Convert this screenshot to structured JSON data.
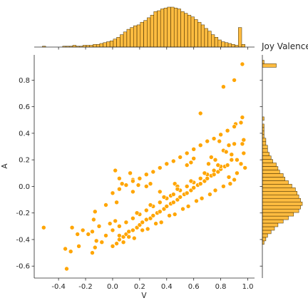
{
  "chart_data": {
    "type": "scatter",
    "title": "Joy Valence",
    "xlabel": "V",
    "ylabel": "A",
    "xlim": [
      -0.58,
      1.05
    ],
    "ylim": [
      -0.69,
      0.99
    ],
    "x_ticks": [
      "-0.4",
      "-0.2",
      "0.0",
      "0.2",
      "0.4",
      "0.6",
      "0.8",
      "1.0"
    ],
    "y_ticks": [
      "-0.6",
      "-0.4",
      "-0.2",
      "0.0",
      "0.2",
      "0.4",
      "0.6",
      "0.8"
    ],
    "color": "#FFA500",
    "edge_color": "#ffffff",
    "marginals": "histograms of V (top) and A (right)",
    "series": [
      {
        "points": [
          [
            -0.34,
            -0.62
          ],
          [
            -0.51,
            -0.31
          ],
          [
            -0.35,
            -0.47
          ],
          [
            -0.31,
            -0.49
          ],
          [
            -0.25,
            -0.45
          ],
          [
            -0.22,
            -0.33
          ],
          [
            -0.3,
            -0.31
          ],
          [
            -0.26,
            -0.36
          ],
          [
            -0.15,
            -0.5
          ],
          [
            -0.13,
            -0.46
          ],
          [
            -0.18,
            -0.36
          ],
          [
            -0.15,
            -0.34
          ],
          [
            -0.12,
            -0.41
          ],
          [
            -0.08,
            -0.42
          ],
          [
            -0.05,
            -0.37
          ],
          [
            -0.1,
            -0.3
          ],
          [
            -0.02,
            -0.28
          ],
          [
            0.02,
            -0.26
          ],
          [
            0.0,
            -0.33
          ],
          [
            0.05,
            -0.37
          ],
          [
            -0.14,
            -0.25
          ],
          [
            -0.13,
            -0.19
          ],
          [
            -0.05,
            -0.14
          ],
          [
            0.03,
            -0.12
          ],
          [
            0.02,
            0.12
          ],
          [
            0.05,
            0.06
          ],
          [
            0.07,
            0.02
          ],
          [
            0.13,
            0.1
          ],
          [
            0.15,
            0.05
          ],
          [
            0.19,
            0.01
          ],
          [
            0.15,
            -0.04
          ],
          [
            0.25,
            0.0
          ],
          [
            0.28,
            0.02
          ],
          [
            0.35,
            -0.04
          ],
          [
            0.46,
            0.02
          ],
          [
            0.48,
            0.0
          ],
          [
            0.43,
            -0.07
          ],
          [
            0.55,
            0.16
          ],
          [
            0.58,
            0.18
          ],
          [
            0.6,
            0.21
          ],
          [
            0.65,
            0.55
          ],
          [
            0.71,
            0.17
          ],
          [
            0.73,
            0.22
          ],
          [
            0.76,
            0.2
          ],
          [
            0.79,
            0.34
          ],
          [
            0.82,
            0.27
          ],
          [
            0.84,
            0.26
          ],
          [
            0.86,
            0.31
          ],
          [
            0.88,
            0.24
          ],
          [
            0.9,
            0.32
          ],
          [
            0.92,
            0.2
          ],
          [
            0.95,
            0.17
          ],
          [
            0.96,
            0.32
          ],
          [
            0.97,
            0.35
          ],
          [
            0.97,
            0.25
          ],
          [
            0.98,
            0.14
          ],
          [
            0.82,
            0.75
          ],
          [
            0.9,
            0.8
          ],
          [
            0.96,
            0.92
          ],
          [
            0.96,
            0.52
          ],
          [
            0.91,
            0.47
          ],
          [
            0.0,
            -0.05
          ],
          [
            0.05,
            -0.02
          ],
          [
            0.1,
            0.01
          ],
          [
            0.15,
            0.04
          ],
          [
            0.2,
            0.06
          ],
          [
            0.25,
            0.09
          ],
          [
            0.3,
            0.11
          ],
          [
            0.35,
            0.14
          ],
          [
            0.4,
            0.17
          ],
          [
            0.45,
            0.19
          ],
          [
            0.5,
            0.22
          ],
          [
            0.55,
            0.25
          ],
          [
            0.6,
            0.28
          ],
          [
            0.65,
            0.31
          ],
          [
            0.7,
            0.34
          ],
          [
            0.75,
            0.36
          ],
          [
            0.8,
            0.39
          ],
          [
            0.85,
            0.42
          ],
          [
            0.9,
            0.45
          ],
          [
            0.95,
            0.48
          ],
          [
            0.0,
            -0.45
          ],
          [
            0.03,
            -0.43
          ],
          [
            0.05,
            -0.4
          ],
          [
            0.08,
            -0.38
          ],
          [
            0.1,
            -0.36
          ],
          [
            0.12,
            -0.34
          ],
          [
            0.15,
            -0.33
          ],
          [
            0.18,
            -0.31
          ],
          [
            0.2,
            -0.29
          ],
          [
            0.22,
            -0.27
          ],
          [
            0.25,
            -0.25
          ],
          [
            0.28,
            -0.24
          ],
          [
            0.3,
            -0.22
          ],
          [
            0.33,
            -0.2
          ],
          [
            0.35,
            -0.19
          ],
          [
            0.38,
            -0.17
          ],
          [
            0.4,
            -0.15
          ],
          [
            0.43,
            -0.13
          ],
          [
            0.45,
            -0.12
          ],
          [
            0.48,
            -0.1
          ],
          [
            0.5,
            -0.08
          ],
          [
            0.53,
            -0.06
          ],
          [
            0.55,
            -0.05
          ],
          [
            0.58,
            -0.03
          ],
          [
            0.6,
            -0.01
          ],
          [
            0.63,
            0.01
          ],
          [
            0.65,
            0.02
          ],
          [
            0.68,
            0.04
          ],
          [
            0.7,
            0.06
          ],
          [
            0.73,
            0.08
          ],
          [
            0.75,
            0.09
          ],
          [
            0.78,
            0.11
          ],
          [
            0.8,
            0.13
          ],
          [
            0.83,
            0.15
          ],
          [
            0.85,
            0.16
          ],
          [
            0.05,
            -0.3
          ],
          [
            0.1,
            -0.27
          ],
          [
            0.15,
            -0.24
          ],
          [
            0.2,
            -0.21
          ],
          [
            0.25,
            -0.18
          ],
          [
            0.3,
            -0.15
          ],
          [
            0.35,
            -0.12
          ],
          [
            0.4,
            -0.09
          ],
          [
            0.45,
            -0.06
          ],
          [
            0.5,
            -0.03
          ],
          [
            0.55,
            0.0
          ],
          [
            0.6,
            0.03
          ],
          [
            0.65,
            0.06
          ],
          [
            0.7,
            0.09
          ],
          [
            0.75,
            0.12
          ],
          [
            0.8,
            0.15
          ],
          [
            0.12,
            -0.38
          ],
          [
            0.22,
            -0.33
          ],
          [
            0.32,
            -0.28
          ],
          [
            0.42,
            -0.22
          ],
          [
            0.52,
            -0.17
          ],
          [
            0.62,
            -0.11
          ],
          [
            0.72,
            -0.06
          ],
          [
            0.82,
            0.0
          ],
          [
            0.18,
            -0.2
          ],
          [
            0.28,
            -0.14
          ],
          [
            0.38,
            -0.08
          ],
          [
            0.48,
            -0.02
          ],
          [
            0.58,
            0.04
          ],
          [
            0.68,
            0.1
          ],
          [
            0.78,
            0.16
          ],
          [
            0.88,
            0.2
          ],
          [
            0.92,
            0.1
          ],
          [
            0.9,
            0.05
          ],
          [
            0.87,
            0.02
          ],
          [
            0.08,
            -0.42
          ],
          [
            0.16,
            -0.39
          ],
          [
            0.26,
            -0.32
          ],
          [
            0.36,
            -0.27
          ],
          [
            0.46,
            -0.21
          ],
          [
            0.56,
            -0.15
          ],
          [
            0.66,
            -0.09
          ],
          [
            0.76,
            -0.03
          ],
          [
            0.86,
            0.07
          ]
        ]
      }
    ],
    "top_hist": {
      "bins": 60,
      "range": [
        -0.52,
        0.98
      ],
      "counts": [
        1,
        0,
        0,
        0,
        0,
        0,
        1,
        1,
        1,
        2,
        1,
        1,
        2,
        2,
        2,
        3,
        3,
        4,
        5,
        6,
        7,
        9,
        11,
        14,
        17,
        20,
        22,
        24,
        25,
        28,
        30,
        33,
        36,
        40,
        41,
        43,
        44,
        45,
        45,
        44,
        43,
        40,
        38,
        36,
        34,
        31,
        28,
        25,
        21,
        18,
        14,
        11,
        8,
        6,
        5,
        4,
        3,
        2,
        22,
        3
      ]
    },
    "right_hist": {
      "bins": 60,
      "range": [
        -0.65,
        0.95
      ],
      "counts": [
        0,
        0,
        0,
        0,
        0,
        0,
        0,
        0,
        1,
        2,
        3,
        5,
        7,
        9,
        12,
        15,
        18,
        21,
        22,
        23,
        22,
        21,
        20,
        19,
        17,
        15,
        13,
        12,
        10,
        9,
        8,
        6,
        5,
        4,
        3,
        3,
        2,
        2,
        1,
        1,
        1,
        1,
        0,
        1,
        0,
        0,
        0,
        0,
        0,
        0,
        0,
        0,
        0,
        0,
        0,
        0,
        0,
        0,
        8,
        1
      ]
    }
  }
}
